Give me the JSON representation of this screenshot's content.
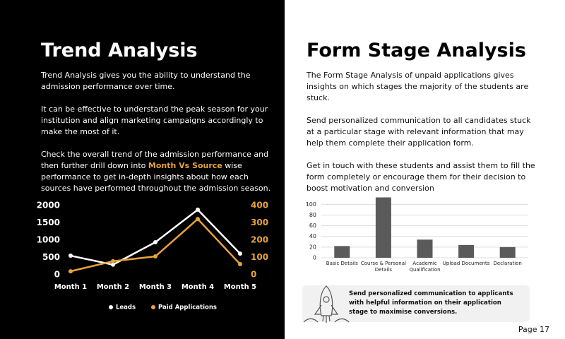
{
  "left": {
    "title": "Trend Analysis",
    "paragraphs": [
      "Trend Analysis gives you the ability to understand the admission performance over time.",
      "It can be effective to understand the peak season for your institution and align marketing campaigns accordingly to make the most of it."
    ],
    "highlight_paragraph": [
      "Check the overall trend of the admission performance and then further drill down into ",
      "Month Vs Source",
      " wise performance to get in-depth insights about how each sources have performed throughout the admission season."
    ]
  },
  "right": {
    "title": "Form Stage Analysis",
    "paragraphs": [
      "The Form Stage Analysis of unpaid applications gives insights on which stages the majority of the students are stuck.",
      "Send personalized communication to all candidates stuck at a particular stage with relevant information that may help them complete their application form.",
      "Get in touch with these students and assist them to fill the form completely or encourage them for their decision to boost motivation and conversion"
    ],
    "callout": "Send personalized communication to applicants with helpful information on their application stage to maximise conversions."
  },
  "footer": "Page 17",
  "chart_data": [
    {
      "type": "line",
      "categories": [
        "Month 1",
        "Month 2",
        "Month 3",
        "Month 4",
        "Month 5"
      ],
      "series": [
        {
          "name": "Leads",
          "color": "#ffffff",
          "values": [
            550,
            290,
            940,
            1880,
            610
          ]
        },
        {
          "name": "Paid Applications",
          "color": "#e8a33a",
          "axis": "y2",
          "values": [
            20,
            78,
            106,
            322,
            61
          ]
        }
      ],
      "ylim": [
        0,
        2000
      ],
      "yticks": [
        0,
        500,
        1000,
        1500,
        2000
      ],
      "y2lim": [
        0,
        400
      ],
      "y2ticks": [
        0,
        100,
        200,
        300,
        400
      ],
      "legend": "bottom"
    },
    {
      "type": "bar",
      "categories": [
        "Basic Details",
        "Course & Personal Details",
        "Academic Qualification",
        "Upload Documents",
        "Declaration"
      ],
      "values": [
        22,
        113,
        34,
        24,
        20
      ],
      "color": "#5a5a5a",
      "ylim": [
        0,
        115
      ],
      "yticks": [
        0,
        20,
        40,
        60,
        80,
        100
      ],
      "grid": true
    }
  ]
}
